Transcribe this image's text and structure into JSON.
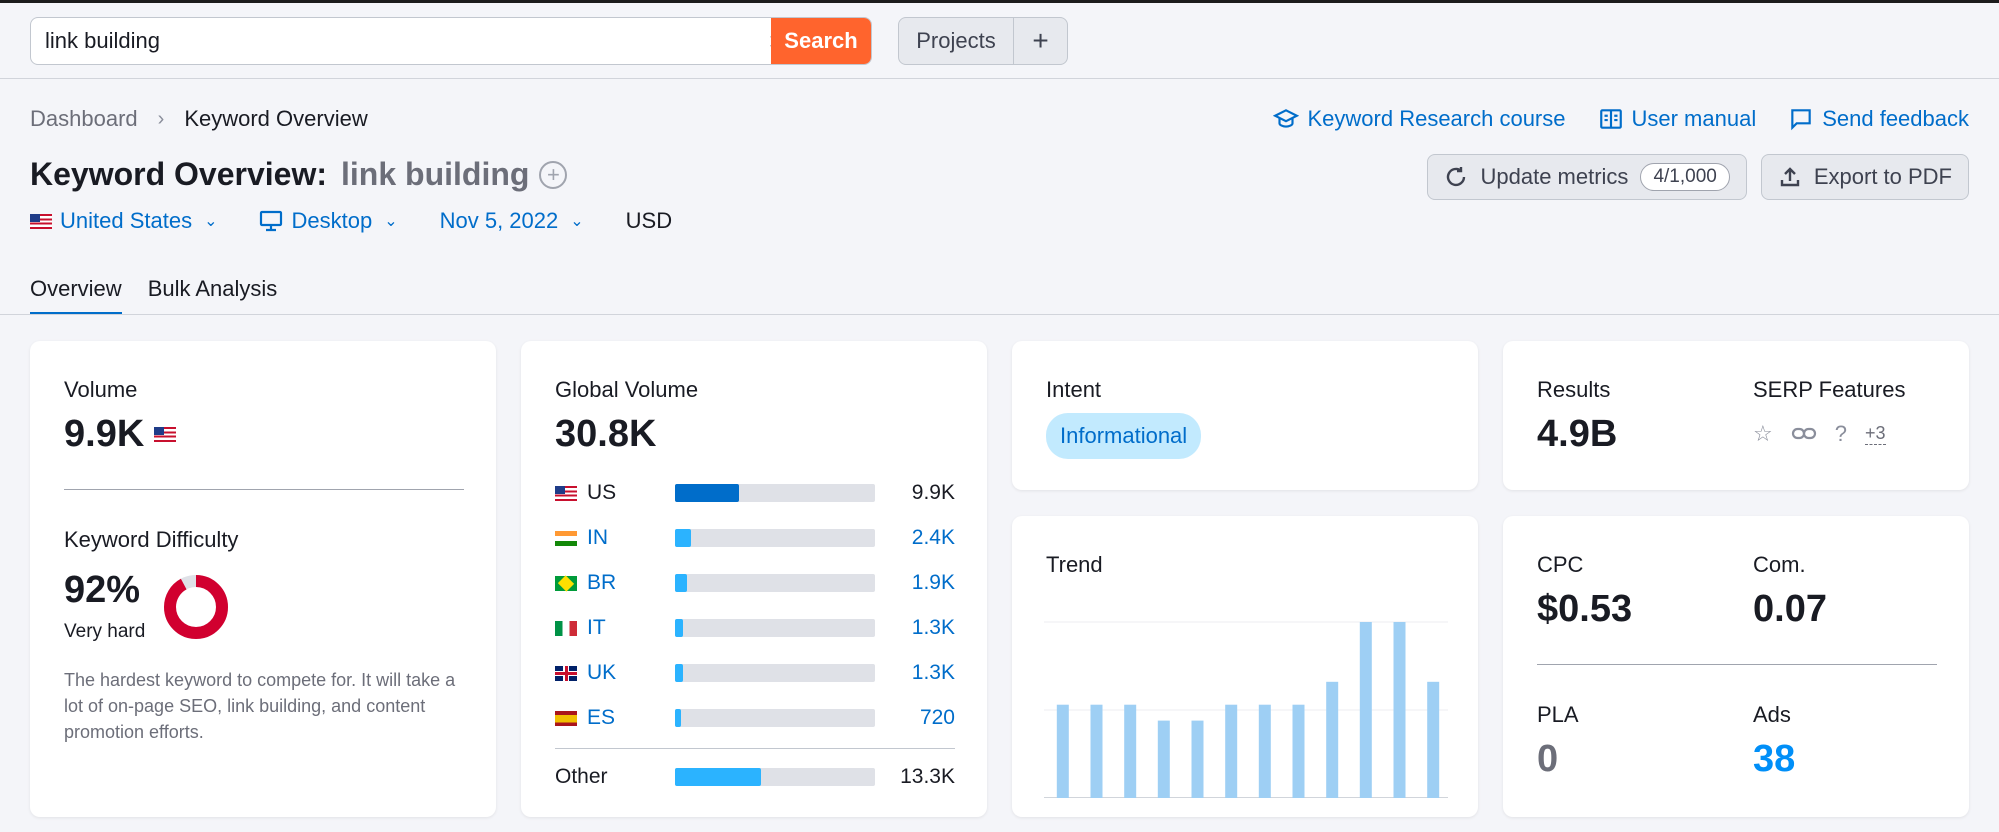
{
  "search": {
    "value": "link building",
    "button": "Search"
  },
  "projects": {
    "label": "Projects",
    "add": "+"
  },
  "breadcrumb": {
    "root": "Dashboard",
    "current": "Keyword Overview"
  },
  "top_links": [
    "Keyword Research course",
    "User manual",
    "Send feedback"
  ],
  "title": {
    "prefix": "Keyword Overview:",
    "keyword": "link building"
  },
  "actions": {
    "update": "Update metrics",
    "update_count": "4/1,000",
    "export": "Export to PDF"
  },
  "filters": {
    "country": "United States",
    "device": "Desktop",
    "date": "Nov 5, 2022",
    "currency": "USD"
  },
  "tabs": [
    "Overview",
    "Bulk Analysis"
  ],
  "volume": {
    "label": "Volume",
    "value": "9.9K"
  },
  "kd": {
    "label": "Keyword Difficulty",
    "value": "92%",
    "percent": 92,
    "level": "Very hard",
    "description": "The hardest keyword to compete for. It will take a lot of on-page SEO, link building, and content promotion efforts."
  },
  "global_volume": {
    "label": "Global Volume",
    "value": "30.8K",
    "countries": [
      {
        "code": "US",
        "value": "9.9K",
        "share": 0.32
      },
      {
        "code": "IN",
        "value": "2.4K",
        "share": 0.078
      },
      {
        "code": "BR",
        "value": "1.9K",
        "share": 0.062
      },
      {
        "code": "IT",
        "value": "1.3K",
        "share": 0.042
      },
      {
        "code": "UK",
        "value": "1.3K",
        "share": 0.042
      },
      {
        "code": "ES",
        "value": "720",
        "share": 0.023
      }
    ],
    "other": {
      "label": "Other",
      "value": "13.3K",
      "share": 0.43
    }
  },
  "intent": {
    "label": "Intent",
    "value": "Informational"
  },
  "results": {
    "label": "Results",
    "value": "4.9B"
  },
  "serp": {
    "label": "SERP Features",
    "more": "+3"
  },
  "trend": {
    "label": "Trend"
  },
  "chart_data": {
    "type": "bar",
    "values": [
      0.53,
      0.53,
      0.53,
      0.44,
      0.44,
      0.53,
      0.53,
      0.53,
      0.66,
      1.0,
      1.0,
      0.66
    ]
  },
  "cpc": {
    "label": "CPC",
    "value": "$0.53"
  },
  "com": {
    "label": "Com.",
    "value": "0.07"
  },
  "pla": {
    "label": "PLA",
    "value": "0"
  },
  "ads": {
    "label": "Ads",
    "value": "38"
  },
  "colors": {
    "accent": "#006dca",
    "search": "#ff642d",
    "kd": "#d1002f",
    "trend_bar": "#9ecff4"
  }
}
